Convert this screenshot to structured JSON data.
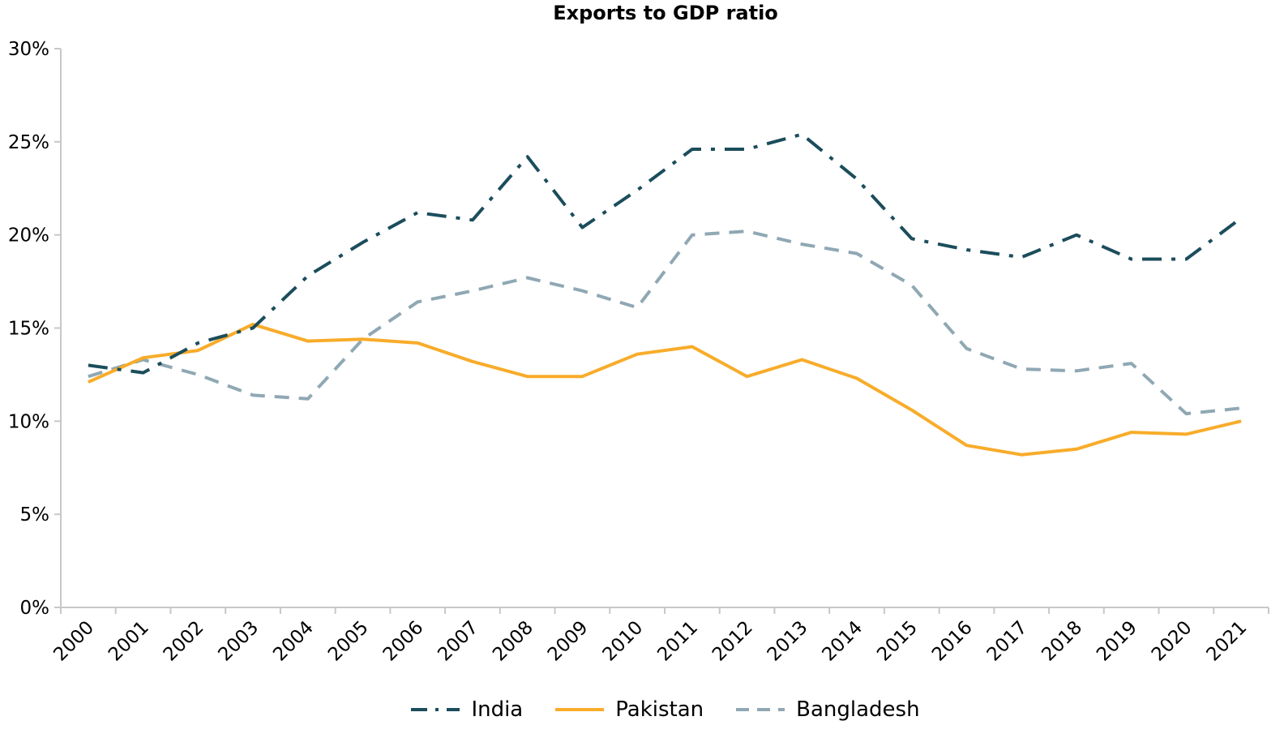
{
  "chart_data": {
    "type": "line",
    "title": "Exports to GDP ratio",
    "xlabel": "",
    "ylabel": "",
    "categories": [
      "2000",
      "2001",
      "2002",
      "2003",
      "2004",
      "2005",
      "2006",
      "2007",
      "2008",
      "2009",
      "2010",
      "2011",
      "2012",
      "2013",
      "2014",
      "2015",
      "2016",
      "2017",
      "2018",
      "2019",
      "2020",
      "2021"
    ],
    "y_ticks": [
      "0%",
      "5%",
      "10%",
      "15%",
      "20%",
      "25%",
      "30%"
    ],
    "ylim": [
      0,
      30
    ],
    "grid": false,
    "legend": "bottom",
    "series": [
      {
        "name": "India",
        "color": "#1b4d5c",
        "dash": "dash-dot",
        "values": [
          13.0,
          12.6,
          14.2,
          15.0,
          17.8,
          19.6,
          21.2,
          20.8,
          24.2,
          20.4,
          22.4,
          24.6,
          24.6,
          25.4,
          23.0,
          19.8,
          19.2,
          18.8,
          20.0,
          18.7,
          18.7,
          20.9
        ]
      },
      {
        "name": "Pakistan",
        "color": "#f8ac2a",
        "dash": "solid",
        "values": [
          12.1,
          13.4,
          13.8,
          15.2,
          14.3,
          14.4,
          14.2,
          13.2,
          12.4,
          12.4,
          13.6,
          14.0,
          12.4,
          13.3,
          12.3,
          10.6,
          8.7,
          8.2,
          8.5,
          9.4,
          9.3,
          10.0
        ]
      },
      {
        "name": "Bangladesh",
        "color": "#8fa8b3",
        "dash": "dash",
        "values": [
          12.4,
          13.3,
          12.5,
          11.4,
          11.2,
          14.4,
          16.4,
          17.0,
          17.7,
          17.0,
          16.1,
          20.0,
          20.2,
          19.5,
          19.0,
          17.3,
          13.9,
          12.8,
          12.7,
          13.1,
          10.4,
          10.7
        ]
      }
    ]
  }
}
